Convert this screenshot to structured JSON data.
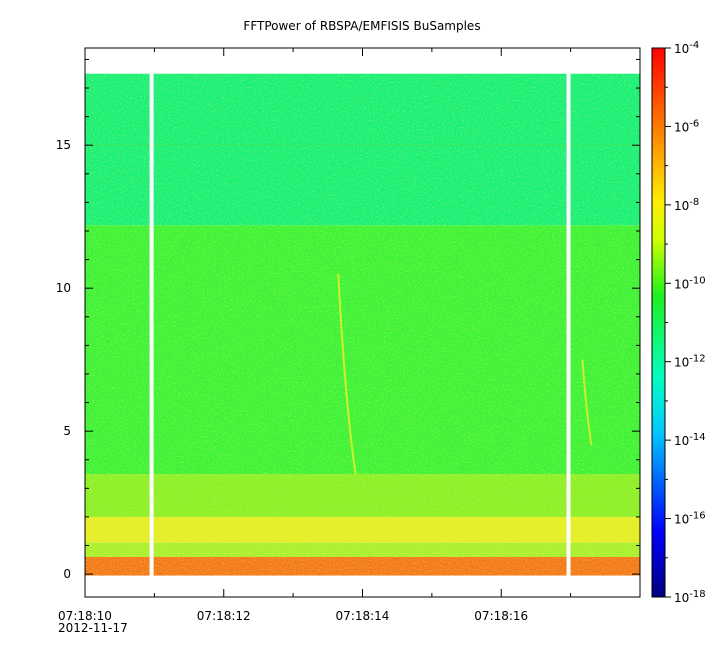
{
  "chart_data": {
    "type": "heatmap",
    "title": "FFTPower of RBSPA/EMFISIS  BuSamples",
    "xlabel": "",
    "ylabel": "",
    "y_ticks": [
      0,
      5,
      10,
      15
    ],
    "y_tick_labels": [
      "0",
      "5",
      "10",
      "15"
    ],
    "ylim": [
      -0.8,
      18.4
    ],
    "x_ticks": [
      {
        "t": 0,
        "label": "07:18:10"
      },
      {
        "t": 2,
        "label": "07:18:12"
      },
      {
        "t": 4,
        "label": "07:18:14"
      },
      {
        "t": 6,
        "label": "07:18:16"
      }
    ],
    "x_date_label": "2012-11-17",
    "x_minor_ticks": [
      1,
      3,
      5,
      7
    ],
    "xlim_label_start": "07:18:10",
    "xlim_label_end": "07:18:18",
    "data_y_range": [
      0,
      17.5
    ],
    "gaps": [
      "07:18:10.96",
      "07:18:16.97"
    ],
    "colorbar": {
      "scale": "log",
      "range": [
        1e-18,
        0.0001
      ],
      "ticks": [
        {
          "base": "10",
          "exp": "-4"
        },
        {
          "base": "10",
          "exp": "-6"
        },
        {
          "base": "10",
          "exp": "-8"
        },
        {
          "base": "10",
          "exp": "-10"
        },
        {
          "base": "10",
          "exp": "-12"
        },
        {
          "base": "10",
          "exp": "-14"
        },
        {
          "base": "10",
          "exp": "-16"
        },
        {
          "base": "10",
          "exp": "-18"
        }
      ]
    },
    "bands": [
      {
        "y_from": 12.2,
        "y_to": 17.5,
        "level": "1e-12",
        "color": "#19f07a"
      },
      {
        "y_from": 3.5,
        "y_to": 12.2,
        "level": "1e-10",
        "color": "#3ef23a"
      },
      {
        "y_from": 2.0,
        "y_to": 3.5,
        "level": "3e-10",
        "color": "#8cf02a"
      },
      {
        "y_from": 1.1,
        "y_to": 2.0,
        "level": "1e-8",
        "color": "#e6ee2a"
      },
      {
        "y_from": 0.6,
        "y_to": 1.1,
        "level": "1e-9",
        "color": "#aaf030"
      },
      {
        "y_from": -0.05,
        "y_to": 0.6,
        "level": "1e-6",
        "color": "#f4781c"
      }
    ]
  }
}
